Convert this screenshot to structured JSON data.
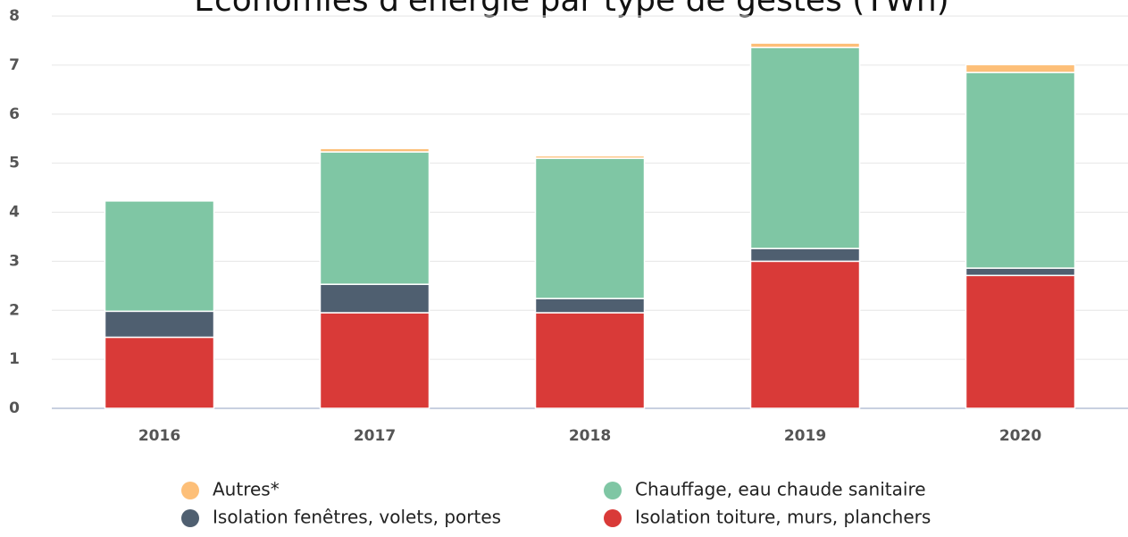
{
  "chart_data": {
    "type": "stacked-bar",
    "title": "Économies d'énergie par type de gestes (TWh)",
    "categories": [
      "2016",
      "2017",
      "2018",
      "2019",
      "2020"
    ],
    "series": [
      {
        "name": "Isolation toiture, murs, planchers",
        "color": "#d93a38",
        "values": [
          1.45,
          1.95,
          1.95,
          3.0,
          2.71
        ]
      },
      {
        "name": "Isolation fenêtres, volets, portes",
        "color": "#4f5f70",
        "values": [
          0.53,
          0.58,
          0.29,
          0.26,
          0.15
        ]
      },
      {
        "name": "Chauffage, eau chaude sanitaire",
        "color": "#7fc6a4",
        "values": [
          2.25,
          2.7,
          2.86,
          4.1,
          3.99
        ]
      },
      {
        "name": "Autres*",
        "color": "#fdbf78",
        "values": [
          0,
          0.07,
          0.05,
          0.09,
          0.16
        ]
      }
    ],
    "ylim": [
      0,
      8
    ],
    "yticks": [
      0,
      1,
      2,
      3,
      4,
      5,
      6,
      7,
      8
    ],
    "grid": true
  }
}
